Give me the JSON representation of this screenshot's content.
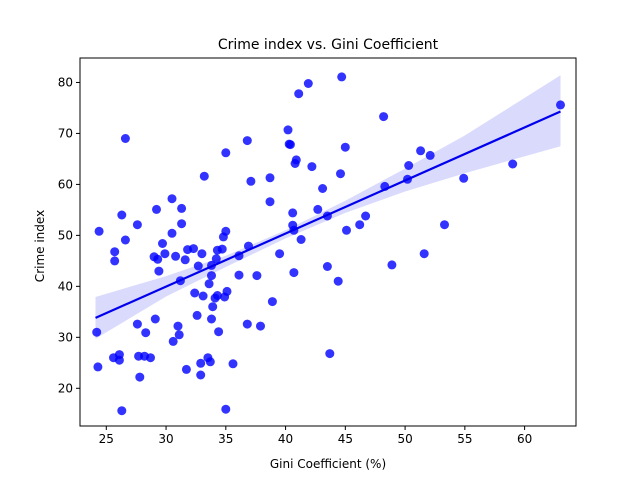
{
  "chart_data": {
    "type": "scatter",
    "title": "Crime index vs. Gini Coefficient",
    "xlabel": "Gini Coefficient (%)",
    "ylabel": "Crime index",
    "xlim": [
      22.8,
      64.3
    ],
    "ylim": [
      12.6,
      84.8
    ],
    "xticks": [
      25,
      30,
      35,
      40,
      45,
      50,
      55,
      60
    ],
    "yticks": [
      20,
      30,
      40,
      50,
      60,
      70,
      80
    ],
    "grid": false,
    "colors": {
      "points": "#0000ff",
      "line": "#0000ee",
      "band": "#d4d4fb"
    },
    "regression": {
      "x": [
        24.1,
        63.0
      ],
      "y": [
        33.8,
        74.3
      ]
    },
    "confidence_band": {
      "x": [
        24.1,
        30,
        35,
        40,
        45,
        50,
        55,
        63.0
      ],
      "lower": [
        29.7,
        38.0,
        43.8,
        49.4,
        54.4,
        58.6,
        62.2,
        67.5
      ],
      "upper": [
        37.9,
        42.0,
        46.0,
        51.0,
        56.8,
        63.1,
        69.6,
        81.4
      ]
    },
    "points": [
      [
        24.2,
        31.0
      ],
      [
        24.3,
        24.2
      ],
      [
        24.4,
        50.8
      ],
      [
        25.6,
        26.0
      ],
      [
        25.7,
        46.8
      ],
      [
        25.7,
        45.0
      ],
      [
        26.1,
        26.6
      ],
      [
        26.1,
        25.5
      ],
      [
        26.3,
        54.0
      ],
      [
        26.3,
        15.6
      ],
      [
        26.6,
        69.0
      ],
      [
        26.6,
        49.1
      ],
      [
        27.6,
        52.1
      ],
      [
        27.6,
        32.6
      ],
      [
        27.7,
        26.3
      ],
      [
        27.8,
        22.2
      ],
      [
        28.2,
        26.3
      ],
      [
        28.3,
        30.9
      ],
      [
        28.7,
        26.0
      ],
      [
        29.0,
        45.8
      ],
      [
        29.1,
        33.6
      ],
      [
        29.2,
        55.1
      ],
      [
        29.3,
        45.3
      ],
      [
        29.4,
        43.0
      ],
      [
        29.7,
        48.4
      ],
      [
        29.9,
        46.4
      ],
      [
        30.5,
        57.2
      ],
      [
        30.5,
        50.4
      ],
      [
        30.6,
        29.2
      ],
      [
        30.8,
        45.9
      ],
      [
        31.0,
        32.2
      ],
      [
        31.1,
        30.5
      ],
      [
        31.2,
        41.1
      ],
      [
        31.3,
        52.3
      ],
      [
        31.3,
        55.3
      ],
      [
        31.6,
        45.2
      ],
      [
        31.7,
        23.7
      ],
      [
        31.8,
        47.2
      ],
      [
        32.3,
        47.4
      ],
      [
        32.4,
        38.7
      ],
      [
        32.6,
        34.3
      ],
      [
        32.7,
        44.0
      ],
      [
        32.9,
        22.6
      ],
      [
        32.9,
        24.9
      ],
      [
        33.0,
        46.4
      ],
      [
        33.1,
        38.1
      ],
      [
        33.2,
        61.6
      ],
      [
        33.5,
        26.0
      ],
      [
        33.6,
        40.5
      ],
      [
        33.7,
        25.2
      ],
      [
        33.8,
        42.1
      ],
      [
        33.8,
        33.6
      ],
      [
        33.8,
        44.1
      ],
      [
        33.9,
        36.0
      ],
      [
        34.1,
        37.7
      ],
      [
        34.2,
        45.4
      ],
      [
        34.3,
        47.1
      ],
      [
        34.3,
        38.2
      ],
      [
        34.4,
        31.1
      ],
      [
        34.7,
        47.3
      ],
      [
        34.8,
        49.7
      ],
      [
        34.9,
        37.9
      ],
      [
        35.0,
        66.2
      ],
      [
        35.0,
        50.8
      ],
      [
        35.0,
        15.9
      ],
      [
        35.1,
        39.0
      ],
      [
        35.6,
        24.8
      ],
      [
        36.1,
        46.0
      ],
      [
        36.1,
        42.2
      ],
      [
        36.8,
        68.6
      ],
      [
        36.8,
        32.6
      ],
      [
        36.9,
        47.9
      ],
      [
        37.1,
        60.6
      ],
      [
        37.6,
        42.1
      ],
      [
        37.9,
        32.2
      ],
      [
        38.7,
        61.3
      ],
      [
        38.7,
        56.6
      ],
      [
        38.9,
        37.0
      ],
      [
        39.5,
        46.4
      ],
      [
        40.2,
        70.7
      ],
      [
        40.3,
        67.9
      ],
      [
        40.4,
        67.8
      ],
      [
        40.6,
        54.4
      ],
      [
        40.6,
        52.0
      ],
      [
        40.7,
        51.0
      ],
      [
        40.7,
        42.7
      ],
      [
        40.8,
        64.1
      ],
      [
        40.9,
        64.8
      ],
      [
        41.1,
        77.8
      ],
      [
        41.3,
        49.2
      ],
      [
        41.9,
        79.8
      ],
      [
        42.2,
        63.5
      ],
      [
        42.7,
        55.1
      ],
      [
        43.1,
        59.2
      ],
      [
        43.5,
        53.8
      ],
      [
        43.5,
        43.9
      ],
      [
        43.7,
        26.8
      ],
      [
        44.4,
        41.0
      ],
      [
        44.6,
        62.1
      ],
      [
        44.7,
        81.1
      ],
      [
        45.0,
        67.3
      ],
      [
        45.1,
        51.0
      ],
      [
        46.2,
        52.1
      ],
      [
        46.7,
        53.8
      ],
      [
        48.2,
        73.3
      ],
      [
        48.3,
        59.6
      ],
      [
        48.9,
        44.2
      ],
      [
        50.2,
        61.0
      ],
      [
        50.3,
        63.7
      ],
      [
        51.3,
        66.6
      ],
      [
        51.6,
        46.4
      ],
      [
        52.1,
        65.7
      ],
      [
        53.3,
        52.1
      ],
      [
        54.9,
        61.2
      ],
      [
        59.0,
        64.0
      ],
      [
        63.0,
        75.6
      ]
    ]
  }
}
